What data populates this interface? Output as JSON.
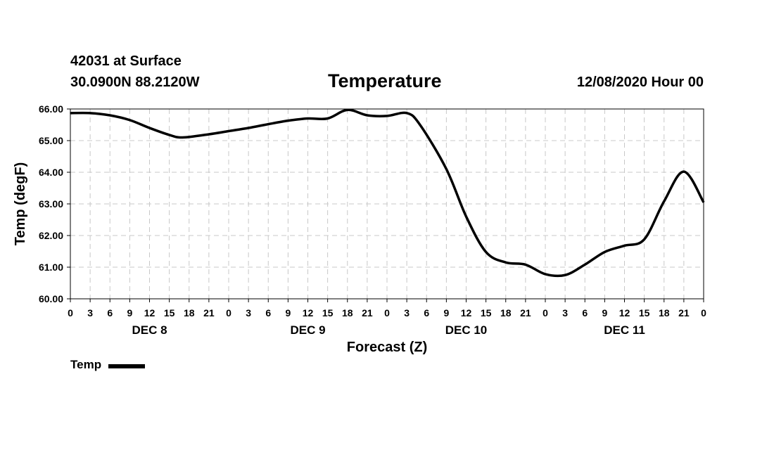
{
  "header": {
    "station": "42031 at Surface",
    "coords": "30.0900N 88.2120W",
    "title": "Temperature",
    "datetime": "12/08/2020 Hour 00"
  },
  "legend": {
    "label": "Temp"
  },
  "chart_data": {
    "type": "line",
    "title": "Temperature",
    "xlabel": "Forecast (Z)",
    "ylabel": "Temp (degF)",
    "ylim": [
      60,
      66
    ],
    "xlim": [
      0,
      96
    ],
    "grid": true,
    "legend_position": "bottom-left",
    "yticks": [
      "60.00",
      "61.00",
      "62.00",
      "63.00",
      "64.00",
      "65.00",
      "66.00"
    ],
    "xticks": [
      "0",
      "3",
      "6",
      "9",
      "12",
      "15",
      "18",
      "21",
      "0",
      "3",
      "6",
      "9",
      "12",
      "15",
      "18",
      "21",
      "0",
      "3",
      "6",
      "9",
      "12",
      "15",
      "18",
      "21",
      "0",
      "3",
      "6",
      "9",
      "12",
      "15",
      "18",
      "21",
      "0"
    ],
    "day_labels": [
      {
        "label": "DEC 8",
        "hour": 12
      },
      {
        "label": "DEC 9",
        "hour": 36
      },
      {
        "label": "DEC 10",
        "hour": 60
      },
      {
        "label": "DEC 11",
        "hour": 84
      }
    ],
    "series": [
      {
        "name": "Temp",
        "color": "#000000",
        "x": [
          0,
          3,
          6,
          9,
          12,
          15,
          17,
          21,
          24,
          27,
          30,
          33,
          36,
          39,
          42,
          45,
          48,
          51,
          53,
          57,
          60,
          63,
          66,
          69,
          72,
          75,
          78,
          81,
          84,
          87,
          90,
          93,
          96
        ],
        "values": [
          65.87,
          65.87,
          65.8,
          65.65,
          65.4,
          65.18,
          65.1,
          65.2,
          65.3,
          65.4,
          65.52,
          65.63,
          65.7,
          65.7,
          65.97,
          65.8,
          65.78,
          65.87,
          65.5,
          64.1,
          62.6,
          61.48,
          61.15,
          61.08,
          60.78,
          60.75,
          61.08,
          61.48,
          61.68,
          61.88,
          63.08,
          64.02,
          63.05
        ]
      }
    ]
  }
}
